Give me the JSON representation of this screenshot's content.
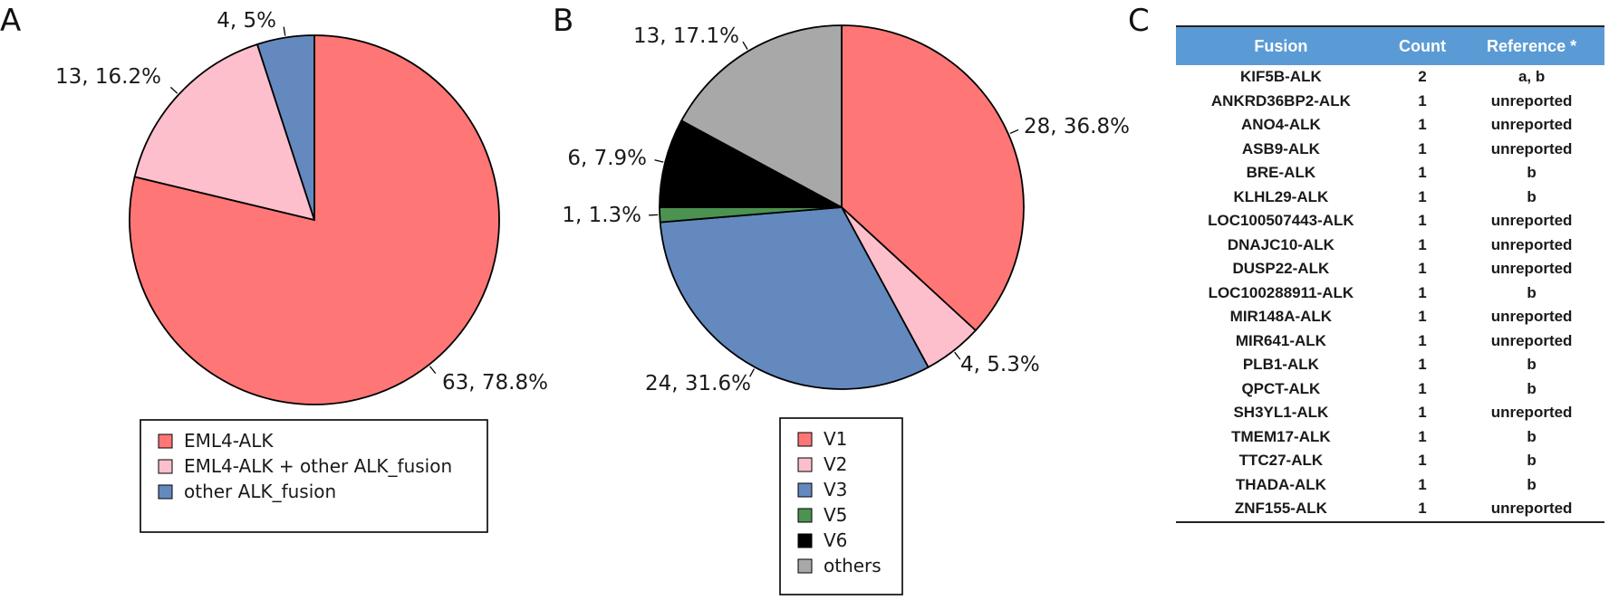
{
  "panels": {
    "a_letter": "A",
    "b_letter": "B",
    "c_letter": "C"
  },
  "chart_data": [
    {
      "type": "pie",
      "panel": "A",
      "slices": [
        {
          "name": "EML4-ALK",
          "value": 63,
          "label": "63, 78.8%",
          "color": "#fe7676"
        },
        {
          "name": "EML4-ALK + other ALK_fusion",
          "value": 13,
          "label": "13, 16.2%",
          "color": "#fdbfcb"
        },
        {
          "name": "other ALK_fusion",
          "value": 4,
          "label": "4, 5%",
          "color": "#6389bf"
        }
      ],
      "legend": [
        "EML4-ALK",
        "EML4-ALK + other ALK_fusion",
        "other ALK_fusion"
      ],
      "direction": "clockwise",
      "start": "12 o'clock"
    },
    {
      "type": "pie",
      "panel": "B",
      "slices": [
        {
          "name": "V1",
          "value": 28,
          "label": "28, 36.8%",
          "color": "#fe7676"
        },
        {
          "name": "V2",
          "value": 4,
          "label": "4, 5.3%",
          "color": "#fdbfcb"
        },
        {
          "name": "V3",
          "value": 24,
          "label": "24, 31.6%",
          "color": "#6389bf"
        },
        {
          "name": "V5",
          "value": 1,
          "label": "1, 1.3%",
          "color": "#4c9250"
        },
        {
          "name": "V6",
          "value": 6,
          "label": "6, 7.9%",
          "color": "#000000"
        },
        {
          "name": "others",
          "value": 13,
          "label": "13, 17.1%",
          "color": "#a8a8a8"
        }
      ],
      "legend": [
        "V1",
        "V2",
        "V3",
        "V5",
        "V6",
        "others"
      ],
      "direction": "clockwise",
      "start": "12 o'clock"
    }
  ],
  "table": {
    "headers": [
      "Fusion",
      "Count",
      "Reference *"
    ],
    "header_color": "#5b9bd5",
    "rows": [
      [
        "KIF5B-ALK",
        "2",
        "a, b"
      ],
      [
        "ANKRD36BP2-ALK",
        "1",
        "unreported"
      ],
      [
        "ANO4-ALK",
        "1",
        "unreported"
      ],
      [
        "ASB9-ALK",
        "1",
        "unreported"
      ],
      [
        "BRE-ALK",
        "1",
        "b"
      ],
      [
        "KLHL29-ALK",
        "1",
        "b"
      ],
      [
        "LOC100507443-ALK",
        "1",
        "unreported"
      ],
      [
        "DNAJC10-ALK",
        "1",
        "unreported"
      ],
      [
        "DUSP22-ALK",
        "1",
        "unreported"
      ],
      [
        "LOC100288911-ALK",
        "1",
        "b"
      ],
      [
        "MIR148A-ALK",
        "1",
        "unreported"
      ],
      [
        "MIR641-ALK",
        "1",
        "unreported"
      ],
      [
        "PLB1-ALK",
        "1",
        "b"
      ],
      [
        "QPCT-ALK",
        "1",
        "b"
      ],
      [
        "SH3YL1-ALK",
        "1",
        "unreported"
      ],
      [
        "TMEM17-ALK",
        "1",
        "b"
      ],
      [
        "TTC27-ALK",
        "1",
        "b"
      ],
      [
        "THADA-ALK",
        "1",
        "b"
      ],
      [
        "ZNF155-ALK",
        "1",
        "unreported"
      ]
    ]
  }
}
